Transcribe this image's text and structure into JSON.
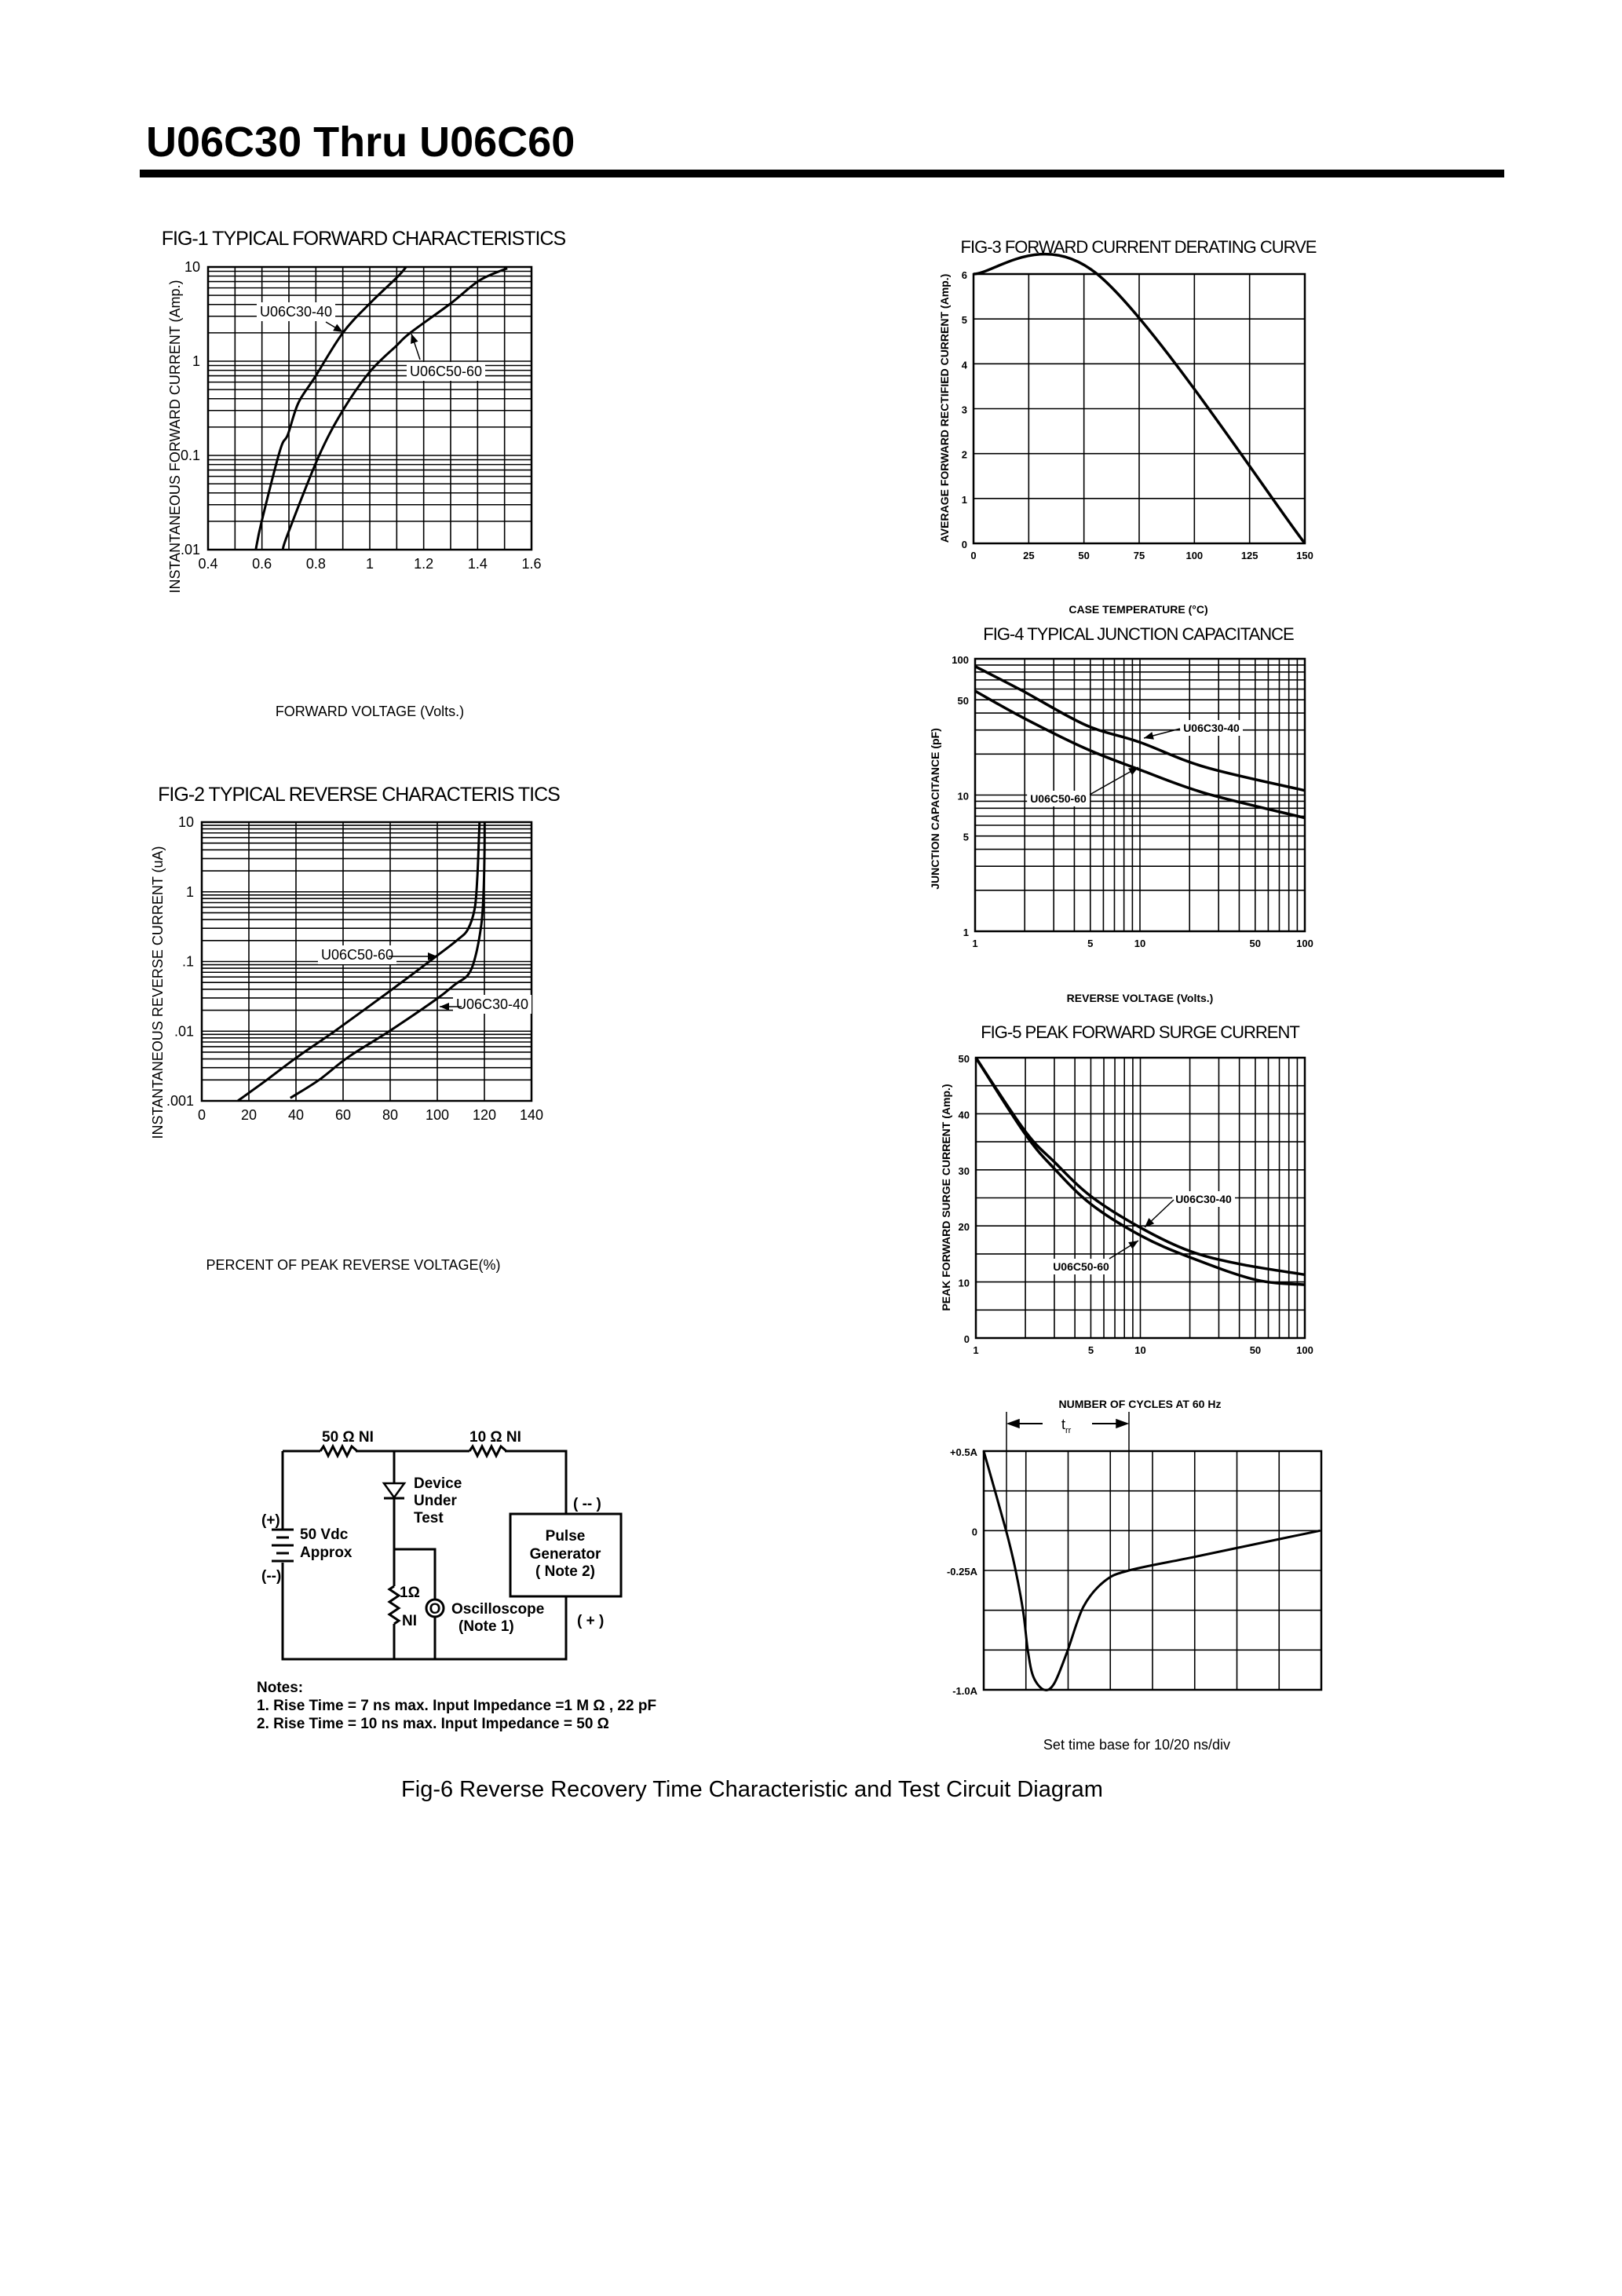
{
  "header": {
    "title": "U06C30 Thru U06C60"
  },
  "chart_data": [
    {
      "type": "line",
      "title": "FIG-1 TYPICAL FORWARD CHARACTERISTICS",
      "xlabel": "FORWARD VOLTAGE (Volts.)",
      "ylabel": "INSTANTANEOUS FORWARD CURRENT (Amp.)",
      "x_scale": "linear",
      "y_scale": "log",
      "xlim": [
        0.4,
        1.6
      ],
      "ylim": [
        0.01,
        10
      ],
      "grid": true,
      "xticks": {
        "values": [
          0.4,
          0.6,
          0.8,
          1,
          1.2,
          1.4,
          1.6
        ],
        "labels": [
          "0.4",
          "0.6",
          "0.8",
          "1",
          "1.2",
          "1.4",
          "1.6"
        ]
      },
      "yticks": {
        "values": [
          10,
          1,
          0.1,
          0.01
        ],
        "labels": [
          "10",
          "1",
          "0.1",
          ".01"
        ]
      },
      "series": [
        {
          "name": "U06C30-40",
          "x": [
            0.577,
            0.599,
            0.667,
            0.696,
            0.735,
            0.797,
            0.9,
            1.0,
            1.1,
            1.135
          ],
          "y": [
            0.01,
            0.02,
            0.113,
            0.166,
            0.36,
            0.68,
            2.0,
            4.1,
            7.7,
            10
          ]
        },
        {
          "name": "U06C50-60",
          "x": [
            0.677,
            0.697,
            0.81,
            0.9,
            1.0,
            1.1,
            1.15,
            1.3,
            1.407,
            1.51
          ],
          "y": [
            0.01,
            0.015,
            0.097,
            0.3,
            0.77,
            1.47,
            2.0,
            4.1,
            7.2,
            9.7
          ]
        }
      ]
    },
    {
      "type": "line",
      "title": "FIG-2 TYPICAL REVERSE CHARACTERIS TICS",
      "xlabel": "PERCENT OF PEAK REVERSE VOLTAGE(%)",
      "ylabel": "INSTANTANEOUS REVERSE CURRENT (uA)",
      "x_scale": "linear",
      "y_scale": "log",
      "xlim": [
        0,
        140
      ],
      "ylim": [
        0.001,
        10
      ],
      "grid": true,
      "xticks": {
        "values": [
          0,
          20,
          40,
          60,
          80,
          100,
          120,
          140
        ],
        "labels": [
          "0",
          "20",
          "40",
          "60",
          "80",
          "100",
          "120",
          "140"
        ]
      },
      "yticks": {
        "values": [
          10,
          1,
          0.1,
          0.01,
          0.001
        ],
        "labels": [
          "10",
          "1",
          ".1",
          ".01",
          ".001"
        ]
      },
      "series": [
        {
          "name": "U06C50-60",
          "x": [
            15.3,
            27.6,
            40.3,
            56.4,
            80,
            100,
            108.7,
            113,
            115.9,
            117,
            117.8,
            117.9
          ],
          "y": [
            0.001,
            0.002,
            0.0042,
            0.01,
            0.038,
            0.122,
            0.206,
            0.29,
            0.58,
            1.63,
            7.7,
            10
          ]
        },
        {
          "name": "U06C30-40",
          "x": [
            37.6,
            49.8,
            62,
            80,
            100,
            107.6,
            113,
            116,
            118.7,
            119.6,
            120,
            120.1
          ],
          "y": [
            0.0011,
            0.002,
            0.0042,
            0.0102,
            0.0295,
            0.047,
            0.064,
            0.112,
            0.34,
            0.9,
            3.0,
            10
          ]
        }
      ]
    },
    {
      "type": "line",
      "title": "FIG-3 FORWARD CURRENT DERATING CURVE",
      "xlabel": "CASE TEMPERATURE (°C)",
      "ylabel": "AVERAGE FORWARD RECTIFIED CURRENT (Amp.)",
      "x_scale": "linear",
      "y_scale": "linear",
      "xlim": [
        0,
        150
      ],
      "ylim": [
        0,
        6
      ],
      "grid": true,
      "xticks": {
        "values": [
          0,
          25,
          50,
          75,
          100,
          125,
          150
        ],
        "labels": [
          "0",
          "25",
          "50",
          "75",
          "100",
          "125",
          "150"
        ]
      },
      "yticks": {
        "values": [
          6,
          5,
          4,
          3,
          2,
          1,
          0
        ],
        "labels": [
          "6",
          "5",
          "4",
          "3",
          "2",
          "1",
          "0"
        ]
      },
      "series": [
        {
          "x": [
            0,
            56,
            150
          ],
          "y": [
            6,
            6,
            0
          ]
        }
      ]
    },
    {
      "type": "line",
      "title": "FIG-4 TYPICAL JUNCTION CAPACITANCE",
      "xlabel": "REVERSE VOLTAGE (Volts.)",
      "ylabel": "JUNCTION CAPACITANCE (pF)",
      "x_scale": "log",
      "y_scale": "log",
      "xlim": [
        1,
        100
      ],
      "ylim": [
        1,
        100
      ],
      "grid": true,
      "xticks": {
        "values": [
          1,
          5,
          10,
          50,
          100
        ],
        "labels": [
          "1",
          "5",
          "10",
          "50",
          "100"
        ]
      },
      "yticks": {
        "values": [
          100,
          50,
          10,
          5,
          1
        ],
        "labels": [
          "100",
          "50",
          "10",
          "5",
          "1"
        ]
      },
      "series": [
        {
          "name": "U06C30-40",
          "x": [
            1,
            1.95,
            4.7,
            9.9,
            25,
            100
          ],
          "y": [
            88,
            58,
            32.6,
            24.5,
            16,
            10.8
          ]
        },
        {
          "name": "U06C50-60",
          "x": [
            1,
            1.95,
            4.7,
            9.9,
            25,
            100
          ],
          "y": [
            58,
            37,
            21.9,
            15.4,
            10.3,
            6.8
          ]
        }
      ]
    },
    {
      "type": "line",
      "title": "FIG-5 PEAK FORWARD SURGE CURRENT",
      "xlabel": "NUMBER OF CYCLES AT 60 Hz",
      "ylabel": "PEAK FORWARD SURGE CURRENT (Amp.)",
      "x_scale": "log",
      "y_scale": "linear",
      "xlim": [
        1,
        100
      ],
      "ylim": [
        0,
        50
      ],
      "grid": true,
      "xticks": {
        "values": [
          1,
          5,
          10,
          50,
          100
        ],
        "labels": [
          "1",
          "5",
          "10",
          "50",
          "100"
        ]
      },
      "yticks": {
        "values": [
          50,
          40,
          30,
          20,
          10,
          0
        ],
        "labels": [
          "50",
          "40",
          "30",
          "20",
          "10",
          "0"
        ]
      },
      "series": [
        {
          "name": "U06C30-40",
          "x": [
            1,
            1.98,
            3,
            5,
            10,
            20,
            40.3,
            100
          ],
          "y": [
            50,
            37,
            31.4,
            25.3,
            19.7,
            15.5,
            13.2,
            11.3
          ]
        },
        {
          "name": "U06C50-60",
          "x": [
            1,
            1.98,
            3,
            5,
            10,
            20,
            50,
            100
          ],
          "y": [
            50,
            36.5,
            30.2,
            23.9,
            18.3,
            14.4,
            10.4,
            9.5
          ]
        }
      ]
    },
    {
      "type": "line",
      "title": "",
      "xlabel": "",
      "ylabel": "",
      "x_scale": "linear",
      "y_scale": "linear",
      "xlim": [
        0,
        8
      ],
      "ylim": [
        -1.0,
        0.5
      ],
      "grid": true,
      "xticks": {
        "values": [],
        "labels": []
      },
      "yticks": {
        "values": [
          0.5,
          0,
          -0.25,
          -1.0
        ],
        "labels": [
          "+0.5A",
          "0",
          "-0.25A",
          "-1.0A"
        ]
      },
      "series": [
        {
          "x": [
            0,
            0.53,
            0.74,
            0.93,
            1.05,
            1.18,
            1.43,
            1.67,
            1.98,
            2.36,
            2.85,
            3.44,
            4.99,
            7.0,
            7.97
          ],
          "y": [
            0.5,
            0,
            -0.23,
            -0.5,
            -0.76,
            -0.92,
            -1.0,
            -0.96,
            -0.76,
            -0.48,
            -0.32,
            -0.25,
            -0.165,
            -0.053,
            0
          ]
        }
      ]
    }
  ],
  "fig6": {
    "trr_label": "t",
    "trr_sub": "rr",
    "time_base_note": "Set time base for 10/20  ns/div",
    "caption": "Fig-6 Reverse Recovery Time Characteristic and Test Circuit Diagram"
  },
  "circuit": {
    "r1_label": "50 Ω   NI",
    "r2_label": "10 Ω   NI",
    "dut_lines": [
      "Device",
      "Under",
      "Test"
    ],
    "battery_plus": "(+)",
    "battery_minus": "(--)",
    "battery_lines": [
      "50 Vdc",
      "Approx"
    ],
    "pulse_minus": "( -- )",
    "pulse_plus": "( + )",
    "pulse_lines": [
      "Pulse",
      "Generator",
      "( Note 2)"
    ],
    "r3_label": "1Ω",
    "r3_sub": "NI",
    "scope_symbol": "O",
    "scope_lines": [
      "Oscilloscope",
      "(Note 1)"
    ],
    "notes_title": "Notes:",
    "notes": [
      "1. Rise Time = 7 ns max. Input Impedance =1 M Ω , 22 pF",
      "2. Rise Time = 10 ns max. Input Impedance = 50 Ω"
    ]
  }
}
